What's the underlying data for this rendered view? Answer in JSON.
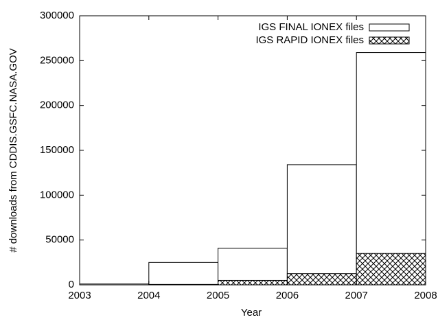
{
  "chart_data": {
    "type": "histogram",
    "xlabel": "Year",
    "ylabel": "# downloads from CDDIS.GSFC.NASA.GOV",
    "bins": [
      2003,
      2004,
      2005,
      2006,
      2007,
      2008
    ],
    "series": [
      {
        "name": "IGS FINAL IONEX files",
        "color": "#ffffff",
        "pattern": "none",
        "values": [
          1000,
          25000,
          41000,
          134000,
          259000
        ]
      },
      {
        "name": "IGS RAPID IONEX files",
        "color": "#ffffff",
        "pattern": "crosshatch",
        "values": [
          0,
          500,
          5000,
          12500,
          35000
        ]
      }
    ],
    "xlim": [
      2003,
      2008
    ],
    "xticks": [
      2003,
      2004,
      2005,
      2006,
      2007,
      2008
    ],
    "ylim": [
      0,
      300000
    ],
    "yticks": [
      0,
      50000,
      100000,
      150000,
      200000,
      250000,
      300000
    ],
    "legend": "top-right"
  }
}
